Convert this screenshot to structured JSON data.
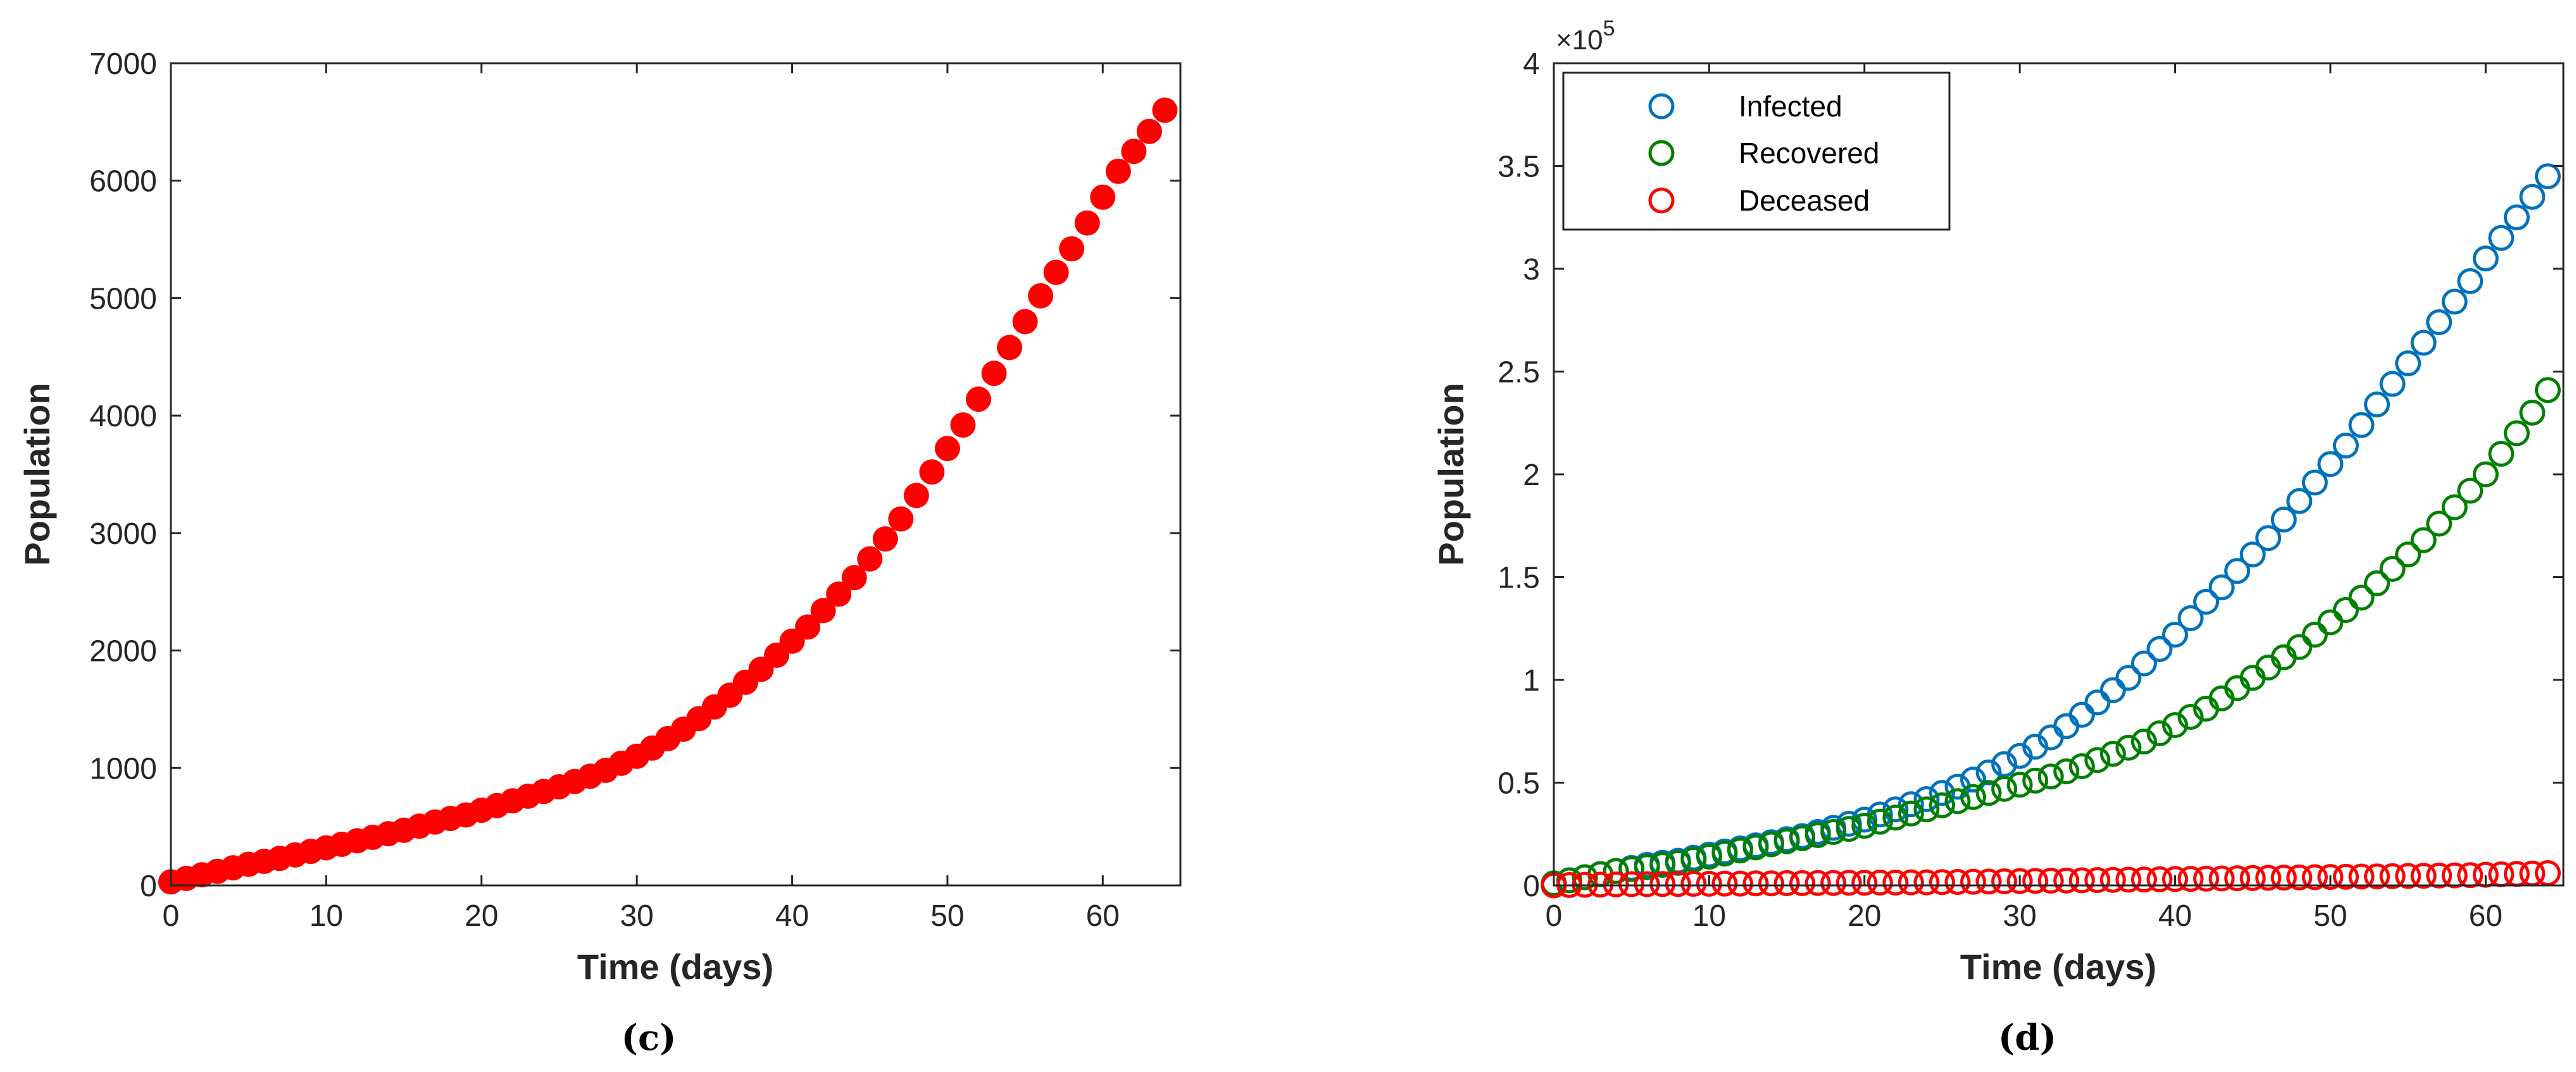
{
  "chart_data": [
    {
      "type": "scatter",
      "panel_label": "(c)",
      "xlabel": "Time (days)",
      "ylabel": "Population",
      "xlim": [
        0,
        65
      ],
      "ylim": [
        0,
        7000
      ],
      "xticks": [
        0,
        10,
        20,
        30,
        40,
        50,
        60
      ],
      "yticks": [
        0,
        1000,
        2000,
        3000,
        4000,
        5000,
        6000,
        7000
      ],
      "series": [
        {
          "name": "Population",
          "color": "#ff0000",
          "marker": "filled-circle",
          "x": [
            0,
            1,
            2,
            3,
            4,
            5,
            6,
            7,
            8,
            9,
            10,
            11,
            12,
            13,
            14,
            15,
            16,
            17,
            18,
            19,
            20,
            21,
            22,
            23,
            24,
            25,
            26,
            27,
            28,
            29,
            30,
            31,
            32,
            33,
            34,
            35,
            36,
            37,
            38,
            39,
            40,
            41,
            42,
            43,
            44,
            45,
            46,
            47,
            48,
            49,
            50,
            51,
            52,
            53,
            54,
            55,
            56,
            57,
            58,
            59,
            60,
            61,
            62,
            63,
            64
          ],
          "values": [
            30,
            60,
            90,
            120,
            150,
            180,
            205,
            230,
            260,
            290,
            320,
            350,
            380,
            410,
            440,
            470,
            505,
            540,
            570,
            600,
            640,
            680,
            720,
            760,
            800,
            840,
            885,
            930,
            980,
            1040,
            1100,
            1170,
            1250,
            1330,
            1420,
            1520,
            1620,
            1730,
            1840,
            1960,
            2080,
            2200,
            2340,
            2480,
            2620,
            2780,
            2950,
            3120,
            3320,
            3520,
            3720,
            3920,
            4140,
            4360,
            4580,
            4800,
            5020,
            5220,
            5420,
            5640,
            5860,
            6080,
            6250,
            6420,
            6600
          ]
        }
      ]
    },
    {
      "type": "scatter",
      "panel_label": "(d)",
      "xlabel": "Time (days)",
      "ylabel": "Population",
      "xlim": [
        0,
        65
      ],
      "ylim": [
        0,
        4
      ],
      "y_multiplier": "×10",
      "y_multiplier_exponent": "5",
      "xticks": [
        0,
        10,
        20,
        30,
        40,
        50,
        60
      ],
      "yticks": [
        0,
        0.5,
        1,
        1.5,
        2,
        2.5,
        3,
        3.5,
        4
      ],
      "ytick_labels": [
        "0",
        "0.5",
        "1",
        "1.5",
        "2",
        "2.5",
        "3",
        "3.5",
        "4"
      ],
      "legend": "top-left",
      "series": [
        {
          "name": "Infected",
          "color": "#0072bd",
          "marker": "open-circle",
          "x": [
            0,
            1,
            2,
            3,
            4,
            5,
            6,
            7,
            8,
            9,
            10,
            11,
            12,
            13,
            14,
            15,
            16,
            17,
            18,
            19,
            20,
            21,
            22,
            23,
            24,
            25,
            26,
            27,
            28,
            29,
            30,
            31,
            32,
            33,
            34,
            35,
            36,
            37,
            38,
            39,
            40,
            41,
            42,
            43,
            44,
            45,
            46,
            47,
            48,
            49,
            50,
            51,
            52,
            53,
            54,
            55,
            56,
            57,
            58,
            59,
            60,
            61,
            62,
            63,
            64
          ],
          "values": [
            0.01,
            0.025,
            0.04,
            0.055,
            0.07,
            0.085,
            0.1,
            0.11,
            0.12,
            0.135,
            0.15,
            0.165,
            0.18,
            0.195,
            0.21,
            0.225,
            0.24,
            0.26,
            0.28,
            0.3,
            0.32,
            0.345,
            0.37,
            0.395,
            0.42,
            0.45,
            0.48,
            0.515,
            0.55,
            0.59,
            0.63,
            0.675,
            0.72,
            0.775,
            0.83,
            0.89,
            0.95,
            1.01,
            1.08,
            1.15,
            1.22,
            1.3,
            1.38,
            1.45,
            1.53,
            1.61,
            1.69,
            1.78,
            1.87,
            1.96,
            2.05,
            2.14,
            2.24,
            2.34,
            2.44,
            2.54,
            2.64,
            2.74,
            2.84,
            2.94,
            3.05,
            3.15,
            3.25,
            3.35,
            3.45
          ]
        },
        {
          "name": "Recovered",
          "color": "#008000",
          "marker": "open-circle",
          "x": [
            0,
            1,
            2,
            3,
            4,
            5,
            6,
            7,
            8,
            9,
            10,
            11,
            12,
            13,
            14,
            15,
            16,
            17,
            18,
            19,
            20,
            21,
            22,
            23,
            24,
            25,
            26,
            27,
            28,
            29,
            30,
            31,
            32,
            33,
            34,
            35,
            36,
            37,
            38,
            39,
            40,
            41,
            42,
            43,
            44,
            45,
            46,
            47,
            48,
            49,
            50,
            51,
            52,
            53,
            54,
            55,
            56,
            57,
            58,
            59,
            60,
            61,
            62,
            63,
            64
          ],
          "values": [
            0.01,
            0.025,
            0.04,
            0.055,
            0.07,
            0.08,
            0.09,
            0.1,
            0.11,
            0.125,
            0.14,
            0.155,
            0.17,
            0.185,
            0.2,
            0.215,
            0.23,
            0.245,
            0.26,
            0.275,
            0.29,
            0.31,
            0.33,
            0.35,
            0.37,
            0.39,
            0.41,
            0.43,
            0.45,
            0.47,
            0.49,
            0.51,
            0.53,
            0.555,
            0.58,
            0.61,
            0.64,
            0.67,
            0.7,
            0.74,
            0.78,
            0.82,
            0.86,
            0.91,
            0.96,
            1.01,
            1.06,
            1.11,
            1.16,
            1.22,
            1.28,
            1.34,
            1.4,
            1.47,
            1.54,
            1.61,
            1.68,
            1.76,
            1.84,
            1.92,
            2.0,
            2.1,
            2.2,
            2.3,
            2.41
          ]
        },
        {
          "name": "Deceased",
          "color": "#ff0000",
          "marker": "open-circle",
          "x": [
            0,
            1,
            2,
            3,
            4,
            5,
            6,
            7,
            8,
            9,
            10,
            11,
            12,
            13,
            14,
            15,
            16,
            17,
            18,
            19,
            20,
            21,
            22,
            23,
            24,
            25,
            26,
            27,
            28,
            29,
            30,
            31,
            32,
            33,
            34,
            35,
            36,
            37,
            38,
            39,
            40,
            41,
            42,
            43,
            44,
            45,
            46,
            47,
            48,
            49,
            50,
            51,
            52,
            53,
            54,
            55,
            56,
            57,
            58,
            59,
            60,
            61,
            62,
            63,
            64
          ],
          "values": [
            0.0,
            0.002,
            0.003,
            0.004,
            0.005,
            0.006,
            0.006,
            0.007,
            0.007,
            0.008,
            0.008,
            0.009,
            0.009,
            0.01,
            0.01,
            0.011,
            0.011,
            0.012,
            0.012,
            0.013,
            0.013,
            0.014,
            0.014,
            0.015,
            0.015,
            0.016,
            0.017,
            0.018,
            0.019,
            0.02,
            0.021,
            0.022,
            0.023,
            0.024,
            0.025,
            0.026,
            0.027,
            0.028,
            0.029,
            0.03,
            0.031,
            0.032,
            0.033,
            0.034,
            0.035,
            0.036,
            0.037,
            0.038,
            0.039,
            0.04,
            0.041,
            0.042,
            0.043,
            0.044,
            0.045,
            0.046,
            0.047,
            0.048,
            0.049,
            0.05,
            0.052,
            0.054,
            0.056,
            0.058,
            0.06
          ]
        }
      ]
    }
  ]
}
